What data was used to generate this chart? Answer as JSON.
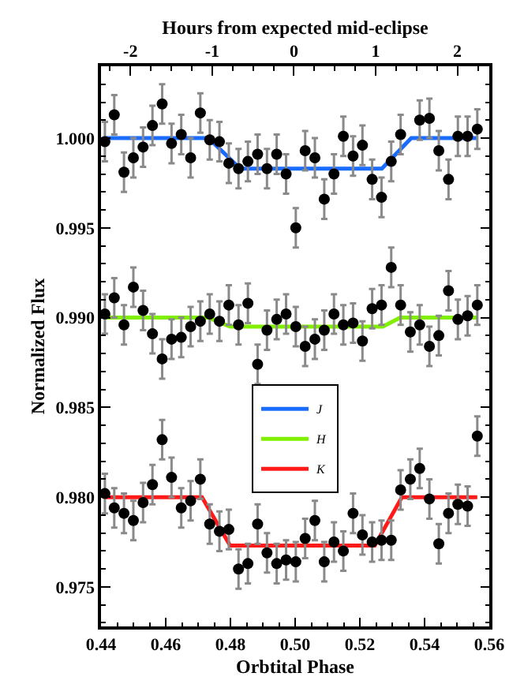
{
  "chart_data": {
    "type": "scatter",
    "xlabel": "Orbtital Phase",
    "ylabel": "Normalized Flux",
    "x2label": "Hours from expected mid-eclipse",
    "x": [
      0.4412,
      0.4441,
      0.4471,
      0.45,
      0.453,
      0.4559,
      0.4589,
      0.4618,
      0.4648,
      0.4677,
      0.4707,
      0.4736,
      0.4766,
      0.4795,
      0.4825,
      0.4854,
      0.4884,
      0.4913,
      0.4943,
      0.4972,
      0.5002,
      0.5031,
      0.5061,
      0.509,
      0.512,
      0.5149,
      0.5179,
      0.5208,
      0.5238,
      0.5267,
      0.5297,
      0.5326,
      0.5356,
      0.5385,
      0.5415,
      0.5444,
      0.5474,
      0.5503,
      0.5533,
      0.5563
    ],
    "xlim": [
      0.44,
      0.56
    ],
    "ylim": [
      0.9728,
      1.004
    ],
    "x2lim": [
      -2.36,
      2.39
    ],
    "xticks": [
      {
        "value": 0.44,
        "label": "0.44"
      },
      {
        "value": 0.46,
        "label": "0.46"
      },
      {
        "value": 0.48,
        "label": "0.48"
      },
      {
        "value": 0.5,
        "label": "0.50"
      },
      {
        "value": 0.52,
        "label": "0.52"
      },
      {
        "value": 0.54,
        "label": "0.54"
      },
      {
        "value": 0.56,
        "label": "0.56"
      }
    ],
    "yticks": [
      {
        "value": 0.975,
        "label": "0.975"
      },
      {
        "value": 0.98,
        "label": "0.980"
      },
      {
        "value": 0.985,
        "label": "0.985"
      },
      {
        "value": 0.99,
        "label": "0.990"
      },
      {
        "value": 0.995,
        "label": "0.995"
      },
      {
        "value": 1.0,
        "label": "1.000"
      }
    ],
    "x2ticks": [
      -2,
      -1,
      0,
      1,
      2
    ],
    "grid": false,
    "legend": "center",
    "marker": "circle",
    "series": [
      {
        "color": "#000000",
        "values": [
          0.9998,
          1.0013,
          0.9981,
          0.9989,
          0.9995,
          1.0007,
          1.0019,
          0.9997,
          1.0002,
          0.9989,
          1.0014,
          0.9999,
          0.9998,
          0.9986,
          0.9983,
          0.9987,
          0.9991,
          0.9983,
          0.9991,
          0.998,
          0.995,
          0.9993,
          0.9989,
          0.9966,
          0.998,
          1.0001,
          0.999,
          0.9996,
          0.9977,
          0.9967,
          0.9987,
          1.0002,
          null,
          1.001,
          1.0011,
          0.9993,
          0.9977,
          1.0001,
          1.0001,
          1.0005
        ],
        "errors": [
          0.0011,
          0.0011,
          0.0011,
          0.0011,
          0.0011,
          0.0011,
          0.0011,
          0.0011,
          0.0011,
          0.0011,
          0.0011,
          0.0011,
          0.0011,
          0.0011,
          0.0011,
          0.0011,
          0.0011,
          0.0011,
          0.0011,
          0.0011,
          0.0011,
          0.0011,
          0.0011,
          0.0011,
          0.0011,
          0.0011,
          0.0011,
          0.0011,
          0.0011,
          0.0011,
          0.0011,
          0.0011,
          null,
          0.0011,
          0.0011,
          0.0011,
          0.0011,
          0.0011,
          0.0011,
          0.0011
        ]
      },
      {
        "color": "#000000",
        "values": [
          0.9902,
          0.9911,
          0.9896,
          0.9917,
          0.9904,
          0.9891,
          0.9877,
          0.9888,
          0.9889,
          0.9895,
          0.9898,
          0.9902,
          0.9898,
          0.9907,
          0.9896,
          0.9908,
          0.9874,
          0.9893,
          0.9899,
          0.9902,
          0.9895,
          0.9884,
          0.9888,
          0.9893,
          0.9902,
          0.9896,
          0.9897,
          0.9887,
          0.9905,
          0.9907,
          0.9928,
          0.9907,
          0.9892,
          0.9896,
          0.9884,
          0.989,
          0.9915,
          0.9899,
          0.9901,
          0.9907
        ],
        "errors": [
          0.0011,
          0.0011,
          0.0011,
          0.0011,
          0.0011,
          0.0011,
          0.0011,
          0.0011,
          0.0011,
          0.0011,
          0.0011,
          0.0011,
          0.0011,
          0.0011,
          0.0011,
          0.0011,
          0.0011,
          0.0011,
          0.0011,
          0.0011,
          0.0011,
          0.0011,
          0.0011,
          0.0011,
          0.0011,
          0.0011,
          0.0011,
          0.0011,
          0.0011,
          0.0011,
          0.0011,
          0.0011,
          0.0011,
          0.0011,
          0.0011,
          0.0011,
          0.0011,
          0.0011,
          0.0011,
          0.0011
        ]
      },
      {
        "color": "#000000",
        "values": [
          0.9802,
          0.9794,
          0.9791,
          0.9787,
          0.9797,
          0.9807,
          0.9832,
          0.9811,
          0.9794,
          0.9798,
          0.981,
          0.9785,
          0.9781,
          0.9782,
          0.976,
          0.9763,
          0.9785,
          0.9769,
          0.9763,
          0.9765,
          0.9764,
          0.9777,
          0.9787,
          0.9764,
          0.9775,
          0.977,
          0.9791,
          0.9779,
          0.9775,
          0.9776,
          0.9776,
          0.9804,
          0.981,
          0.9816,
          0.9799,
          0.9774,
          0.9791,
          0.9796,
          0.9795,
          0.9834
        ],
        "errors": [
          0.0011,
          0.0011,
          0.0011,
          0.0011,
          0.0011,
          0.0011,
          0.0011,
          0.0011,
          0.0011,
          0.0011,
          0.0011,
          0.0011,
          0.0011,
          0.0011,
          0.0011,
          0.0011,
          0.0011,
          0.0011,
          0.0011,
          0.0011,
          0.0011,
          0.0011,
          0.0011,
          0.0011,
          0.0011,
          0.0011,
          0.0011,
          0.0011,
          0.0011,
          0.0011,
          0.0011,
          0.0011,
          0.0011,
          0.0011,
          0.0011,
          0.0011,
          0.0011,
          0.0011,
          0.0011,
          0.0011
        ]
      },
      {
        "type": "line",
        "marker": "none",
        "line_style": "solid",
        "name": "J",
        "color": "#1a6cff",
        "x": [
          0.4412,
          0.4732,
          0.483,
          0.5268,
          0.5359,
          0.5563
        ],
        "values": [
          1.0,
          1.0,
          0.9983,
          0.9983,
          1.0,
          1.0
        ]
      },
      {
        "type": "line",
        "marker": "none",
        "line_style": "solid",
        "name": "H",
        "color": "#80f000",
        "x": [
          0.4412,
          0.4732,
          0.4799,
          0.5271,
          0.5325,
          0.5563
        ],
        "values": [
          0.99,
          0.99,
          0.9895,
          0.9895,
          0.99,
          0.99
        ]
      },
      {
        "type": "line",
        "marker": "none",
        "line_style": "solid",
        "name": "K",
        "color": "#ff1a1a",
        "x": [
          0.4412,
          0.4712,
          0.4799,
          0.5246,
          0.533,
          0.5563
        ],
        "values": [
          0.98,
          0.98,
          0.9773,
          0.9773,
          0.98,
          0.98
        ]
      }
    ]
  }
}
